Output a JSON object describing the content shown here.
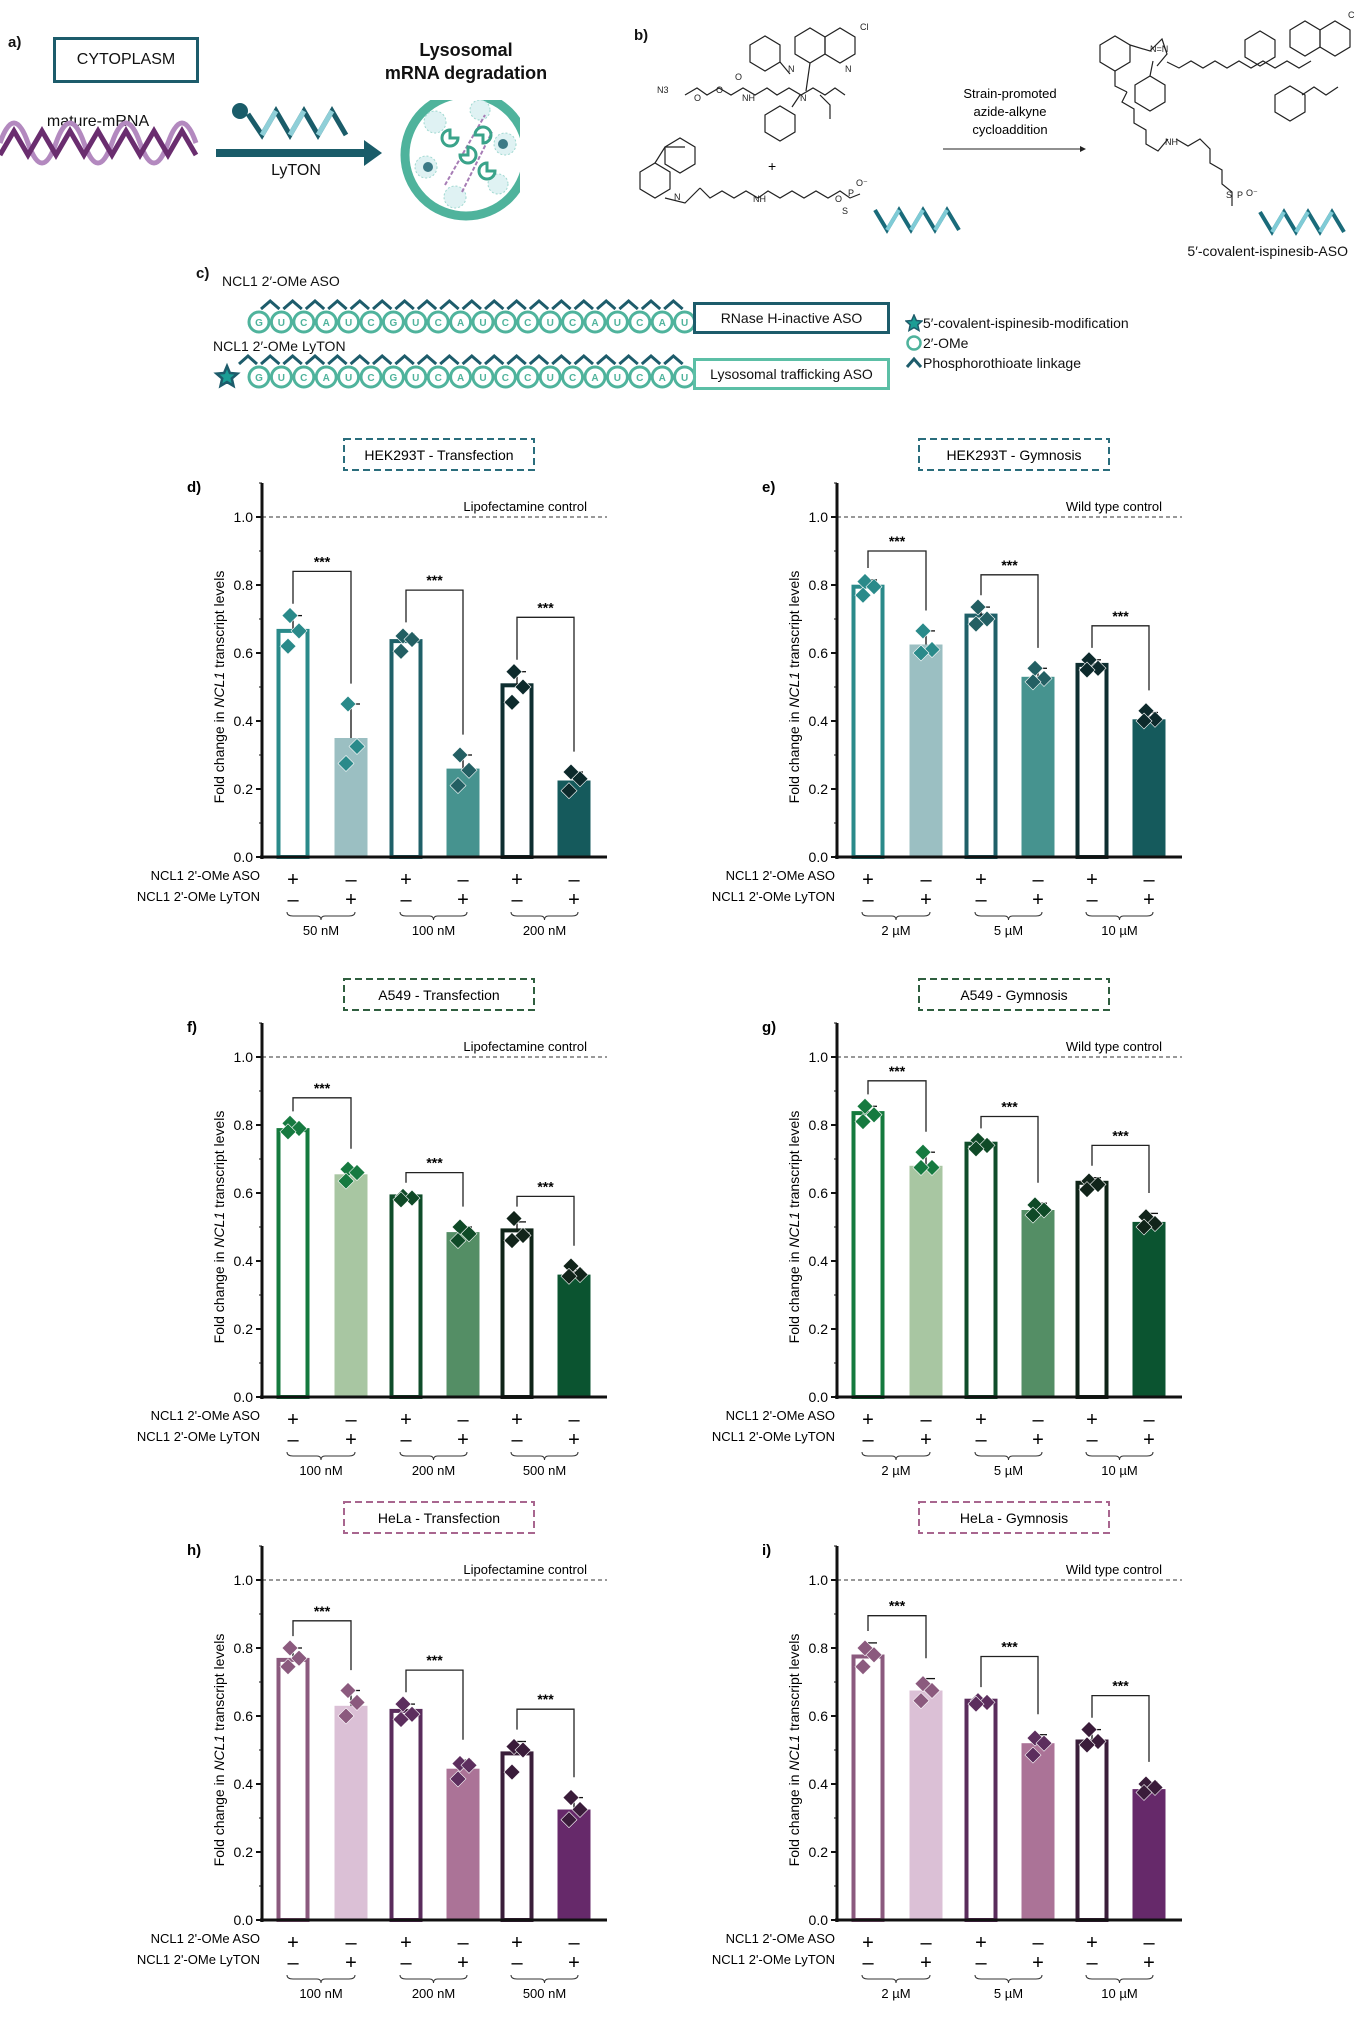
{
  "panel_a": {
    "label": "a)",
    "cytoplasm": "CYTOPLASM",
    "mrna_label": "mature-mRNA",
    "arrow_label": "LyTON",
    "lysosome_title_line1": "Lysosomal",
    "lysosome_title_line2": "mRNA degradation"
  },
  "panel_b": {
    "label": "b)",
    "reaction_line1": "Strain-promoted",
    "reaction_line2": "azide-alkyne",
    "reaction_line3": "cycloaddition",
    "plus": "+",
    "product_label": "5′-covalent-ispinesib-ASO",
    "atoms": {
      "n3": "N3",
      "o": "O",
      "n": "N",
      "h": "H",
      "nh": "NH",
      "cl": "Cl",
      "p": "P",
      "s": "S",
      "o_minus": "O⁻",
      "nn": "N=N"
    }
  },
  "panel_c": {
    "label": "c)",
    "aso_label": "NCL1 2′-OMe ASO",
    "lyton_label": "NCL1 2′-OMe LyTON",
    "sequence": [
      "G",
      "U",
      "C",
      "A",
      "U",
      "C",
      "G",
      "U",
      "C",
      "A",
      "U",
      "C",
      "C",
      "U",
      "C",
      "A",
      "U",
      "C",
      "A",
      "U"
    ],
    "aso_box": "RNase H-inactive ASO",
    "lyton_box": "Lysosomal trafficking ASO",
    "legend": [
      {
        "icon": "star-icon",
        "text": "5′-covalent-ispinesib-modification"
      },
      {
        "icon": "circle-icon",
        "text": "2′-OMe"
      },
      {
        "icon": "chevron-icon",
        "text": "Phosphorothioate linkage"
      }
    ],
    "colors": {
      "nucleotide": "#4fb39c",
      "linkage": "#1d5c6b",
      "aso_box": "#1d5c6b",
      "lyton_box": "#5cbfa6",
      "star": "#1b9e95"
    }
  },
  "chart_data": [
    {
      "type": "bar",
      "letter": "d)",
      "title": "HEK293T - Transfection",
      "ylabel": [
        "Fold change in ",
        "NCL1",
        " transcript levels"
      ],
      "ylim": [
        0,
        1.1
      ],
      "yticks": [
        "0.0",
        "0.2",
        "0.4",
        "0.6",
        "0.8",
        "1.0"
      ],
      "reference": {
        "label": "Lipofectamine control",
        "value": 1.0
      },
      "row_labels": [
        "NCL1 2'-OMe ASO",
        "NCL1 2'-OMe LyTON"
      ],
      "groups": [
        "50 nM",
        "100 nM",
        "200 nM"
      ],
      "bars": [
        {
          "aso": "+",
          "lyton": "-",
          "mean": 0.665,
          "err_top": 0.71,
          "points": [
            0.71,
            0.665,
            0.62
          ]
        },
        {
          "aso": "-",
          "lyton": "+",
          "mean": 0.35,
          "err_top": 0.45,
          "points": [
            0.45,
            0.325,
            0.275
          ]
        },
        {
          "aso": "+",
          "lyton": "-",
          "mean": 0.635,
          "err_top": 0.655,
          "points": [
            0.65,
            0.64,
            0.605
          ]
        },
        {
          "aso": "-",
          "lyton": "+",
          "mean": 0.26,
          "err_top": 0.3,
          "points": [
            0.3,
            0.255,
            0.21
          ]
        },
        {
          "aso": "+",
          "lyton": "-",
          "mean": 0.505,
          "err_top": 0.545,
          "points": [
            0.545,
            0.5,
            0.455
          ]
        },
        {
          "aso": "-",
          "lyton": "+",
          "mean": 0.225,
          "err_top": 0.25,
          "points": [
            0.25,
            0.23,
            0.195
          ]
        }
      ],
      "significance": [
        {
          "label": "***",
          "level": 0.84
        },
        {
          "label": "***",
          "level": 0.785
        },
        {
          "label": "***",
          "level": 0.705
        }
      ],
      "colors": {
        "box": "#2a6d7c",
        "outline": [
          "#2a8a8a",
          "#1f6068",
          "#0e2e30"
        ],
        "fill": [
          "#9bbfc2",
          "#46938f",
          "#155a5c"
        ],
        "points": [
          "#2a8a8a",
          "#235f63",
          "#0d2a2c"
        ]
      }
    },
    {
      "type": "bar",
      "letter": "e)",
      "title": "HEK293T - Gymnosis",
      "ylabel": [
        "Fold change in ",
        "NCL1",
        " transcript levels"
      ],
      "ylim": [
        0,
        1.1
      ],
      "yticks": [
        "0.0",
        "0.2",
        "0.4",
        "0.6",
        "0.8",
        "1.0"
      ],
      "reference": {
        "label": "Wild type control",
        "value": 1.0
      },
      "row_labels": [
        "NCL1 2'-OMe ASO",
        "NCL1 2'-OMe LyTON"
      ],
      "groups": [
        "2 µM",
        "5 µM",
        "10 µM"
      ],
      "bars": [
        {
          "aso": "+",
          "lyton": "-",
          "mean": 0.795,
          "err_top": 0.815,
          "points": [
            0.81,
            0.795,
            0.77
          ]
        },
        {
          "aso": "-",
          "lyton": "+",
          "mean": 0.625,
          "err_top": 0.665,
          "points": [
            0.665,
            0.61,
            0.6
          ]
        },
        {
          "aso": "+",
          "lyton": "-",
          "mean": 0.71,
          "err_top": 0.735,
          "points": [
            0.735,
            0.7,
            0.685
          ]
        },
        {
          "aso": "-",
          "lyton": "+",
          "mean": 0.53,
          "err_top": 0.555,
          "points": [
            0.555,
            0.525,
            0.515
          ]
        },
        {
          "aso": "+",
          "lyton": "-",
          "mean": 0.565,
          "err_top": 0.58,
          "points": [
            0.58,
            0.555,
            0.55
          ]
        },
        {
          "aso": "-",
          "lyton": "+",
          "mean": 0.405,
          "err_top": 0.425,
          "points": [
            0.43,
            0.405,
            0.4
          ]
        }
      ],
      "significance": [
        {
          "label": "***",
          "level": 0.9
        },
        {
          "label": "***",
          "level": 0.83
        },
        {
          "label": "***",
          "level": 0.68
        }
      ],
      "colors": {
        "box": "#2a6d7c",
        "outline": [
          "#2a8a8a",
          "#1f6068",
          "#0e2e30"
        ],
        "fill": [
          "#9bbfc2",
          "#46938f",
          "#155a5c"
        ],
        "points": [
          "#2a8a8a",
          "#235f63",
          "#0d2a2c"
        ]
      }
    },
    {
      "type": "bar",
      "letter": "f)",
      "title": "A549 - Transfection",
      "ylabel": [
        "Fold change in ",
        "NCL1",
        " transcript levels"
      ],
      "ylim": [
        0,
        1.1
      ],
      "yticks": [
        "0.0",
        "0.2",
        "0.4",
        "0.6",
        "0.8",
        "1.0"
      ],
      "reference": {
        "label": "Lipofectamine control",
        "value": 1.0
      },
      "row_labels": [
        "NCL1 2'-OMe ASO",
        "NCL1 2'-OMe LyTON"
      ],
      "groups": [
        "100 nM",
        "200 nM",
        "500 nM"
      ],
      "bars": [
        {
          "aso": "+",
          "lyton": "-",
          "mean": 0.785,
          "err_top": 0.8,
          "points": [
            0.805,
            0.79,
            0.78
          ]
        },
        {
          "aso": "-",
          "lyton": "+",
          "mean": 0.655,
          "err_top": 0.67,
          "points": [
            0.67,
            0.66,
            0.635
          ]
        },
        {
          "aso": "+",
          "lyton": "-",
          "mean": 0.59,
          "err_top": 0.595,
          "points": [
            0.59,
            0.585,
            0.58
          ]
        },
        {
          "aso": "-",
          "lyton": "+",
          "mean": 0.485,
          "err_top": 0.5,
          "points": [
            0.5,
            0.48,
            0.46
          ]
        },
        {
          "aso": "+",
          "lyton": "-",
          "mean": 0.49,
          "err_top": 0.515,
          "points": [
            0.525,
            0.475,
            0.46
          ]
        },
        {
          "aso": "-",
          "lyton": "+",
          "mean": 0.36,
          "err_top": 0.375,
          "points": [
            0.385,
            0.36,
            0.355
          ]
        }
      ],
      "significance": [
        {
          "label": "***",
          "level": 0.88
        },
        {
          "label": "***",
          "level": 0.66
        },
        {
          "label": "***",
          "level": 0.59
        }
      ],
      "colors": {
        "box": "#2f5e3f",
        "outline": [
          "#157a3e",
          "#0f4d2a",
          "#0f2418"
        ],
        "fill": [
          "#a8c6a2",
          "#548e65",
          "#0b5430"
        ],
        "points": [
          "#167a40",
          "#0f4a27",
          "#11241a"
        ]
      }
    },
    {
      "type": "bar",
      "letter": "g)",
      "title": "A549 - Gymnosis",
      "ylabel": [
        "Fold change in ",
        "NCL1",
        " transcript levels"
      ],
      "ylim": [
        0,
        1.1
      ],
      "yticks": [
        "0.0",
        "0.2",
        "0.4",
        "0.6",
        "0.8",
        "1.0"
      ],
      "reference": {
        "label": "Wild type control",
        "value": 1.0
      },
      "row_labels": [
        "NCL1 2'-OMe ASO",
        "NCL1 2'-OMe LyTON"
      ],
      "groups": [
        "2 µM",
        "5 µM",
        "10 µM"
      ],
      "bars": [
        {
          "aso": "+",
          "lyton": "-",
          "mean": 0.835,
          "err_top": 0.855,
          "points": [
            0.855,
            0.83,
            0.81
          ]
        },
        {
          "aso": "-",
          "lyton": "+",
          "mean": 0.68,
          "err_top": 0.72,
          "points": [
            0.72,
            0.675,
            0.675
          ]
        },
        {
          "aso": "+",
          "lyton": "-",
          "mean": 0.745,
          "err_top": 0.755,
          "points": [
            0.755,
            0.74,
            0.73
          ]
        },
        {
          "aso": "-",
          "lyton": "+",
          "mean": 0.55,
          "err_top": 0.57,
          "points": [
            0.565,
            0.55,
            0.535
          ]
        },
        {
          "aso": "+",
          "lyton": "-",
          "mean": 0.63,
          "err_top": 0.645,
          "points": [
            0.635,
            0.625,
            0.61
          ]
        },
        {
          "aso": "-",
          "lyton": "+",
          "mean": 0.515,
          "err_top": 0.54,
          "points": [
            0.53,
            0.51,
            0.5
          ]
        }
      ],
      "significance": [
        {
          "label": "***",
          "level": 0.93
        },
        {
          "label": "***",
          "level": 0.825
        },
        {
          "label": "***",
          "level": 0.74
        }
      ],
      "colors": {
        "box": "#2f5e3f",
        "outline": [
          "#157a3e",
          "#0f4d2a",
          "#0f2418"
        ],
        "fill": [
          "#a8c6a2",
          "#548e65",
          "#0b5430"
        ],
        "points": [
          "#167a40",
          "#0f4a27",
          "#11241a"
        ]
      }
    },
    {
      "type": "bar",
      "letter": "h)",
      "title": "HeLa - Transfection",
      "ylabel": [
        "Fold change in ",
        "NCL1",
        " transcript levels"
      ],
      "ylim": [
        0,
        1.1
      ],
      "yticks": [
        "0.0",
        "0.2",
        "0.4",
        "0.6",
        "0.8",
        "1.0"
      ],
      "reference": {
        "label": "Lipofectamine control",
        "value": 1.0
      },
      "row_labels": [
        "NCL1 2'-OMe ASO",
        "NCL1 2'-OMe LyTON"
      ],
      "groups": [
        "100 nM",
        "200 nM",
        "500 nM"
      ],
      "bars": [
        {
          "aso": "+",
          "lyton": "-",
          "mean": 0.765,
          "err_top": 0.8,
          "points": [
            0.8,
            0.77,
            0.745
          ]
        },
        {
          "aso": "-",
          "lyton": "+",
          "mean": 0.63,
          "err_top": 0.675,
          "points": [
            0.675,
            0.64,
            0.6
          ]
        },
        {
          "aso": "+",
          "lyton": "-",
          "mean": 0.615,
          "err_top": 0.635,
          "points": [
            0.635,
            0.605,
            0.59
          ]
        },
        {
          "aso": "-",
          "lyton": "+",
          "mean": 0.445,
          "err_top": 0.47,
          "points": [
            0.46,
            0.455,
            0.415
          ]
        },
        {
          "aso": "+",
          "lyton": "-",
          "mean": 0.49,
          "err_top": 0.525,
          "points": [
            0.51,
            0.5,
            0.435
          ]
        },
        {
          "aso": "-",
          "lyton": "+",
          "mean": 0.325,
          "err_top": 0.36,
          "points": [
            0.36,
            0.325,
            0.295
          ]
        }
      ],
      "significance": [
        {
          "label": "***",
          "level": 0.88
        },
        {
          "label": "***",
          "level": 0.735
        },
        {
          "label": "***",
          "level": 0.62
        }
      ],
      "colors": {
        "box": "#a8668f",
        "outline": [
          "#8b5a7e",
          "#5a2c5c",
          "#3a1e3a"
        ],
        "fill": [
          "#dbc0d6",
          "#ab7397",
          "#66296a"
        ],
        "points": [
          "#8b5a7e",
          "#5c2e5e",
          "#3a1c3a"
        ]
      }
    },
    {
      "type": "bar",
      "letter": "i)",
      "title": "HeLa - Gymnosis",
      "ylabel": [
        "Fold change in ",
        "NCL1",
        " transcript levels"
      ],
      "ylim": [
        0,
        1.1
      ],
      "yticks": [
        "0.0",
        "0.2",
        "0.4",
        "0.6",
        "0.8",
        "1.0"
      ],
      "reference": {
        "label": "Wild type control",
        "value": 1.0
      },
      "row_labels": [
        "NCL1 2'-OMe ASO",
        "NCL1 2'-OMe LyTON"
      ],
      "groups": [
        "2 µM",
        "5 µM",
        "10 µM"
      ],
      "bars": [
        {
          "aso": "+",
          "lyton": "-",
          "mean": 0.775,
          "err_top": 0.815,
          "points": [
            0.8,
            0.78,
            0.745
          ]
        },
        {
          "aso": "-",
          "lyton": "+",
          "mean": 0.675,
          "err_top": 0.71,
          "points": [
            0.695,
            0.675,
            0.645
          ]
        },
        {
          "aso": "+",
          "lyton": "-",
          "mean": 0.645,
          "err_top": 0.65,
          "points": [
            0.645,
            0.64,
            0.635
          ]
        },
        {
          "aso": "-",
          "lyton": "+",
          "mean": 0.52,
          "err_top": 0.545,
          "points": [
            0.535,
            0.52,
            0.485
          ]
        },
        {
          "aso": "+",
          "lyton": "-",
          "mean": 0.525,
          "err_top": 0.56,
          "points": [
            0.56,
            0.525,
            0.515
          ]
        },
        {
          "aso": "-",
          "lyton": "+",
          "mean": 0.385,
          "err_top": 0.405,
          "points": [
            0.4,
            0.39,
            0.375
          ]
        }
      ],
      "significance": [
        {
          "label": "***",
          "level": 0.895
        },
        {
          "label": "***",
          "level": 0.775
        },
        {
          "label": "***",
          "level": 0.66
        }
      ],
      "colors": {
        "box": "#a8668f",
        "outline": [
          "#8b5a7e",
          "#5a2c5c",
          "#3a1e3a"
        ],
        "fill": [
          "#dbc0d6",
          "#ab7397",
          "#66296a"
        ],
        "points": [
          "#8b5a7e",
          "#5c2e5e",
          "#3a1c3a"
        ]
      }
    }
  ]
}
